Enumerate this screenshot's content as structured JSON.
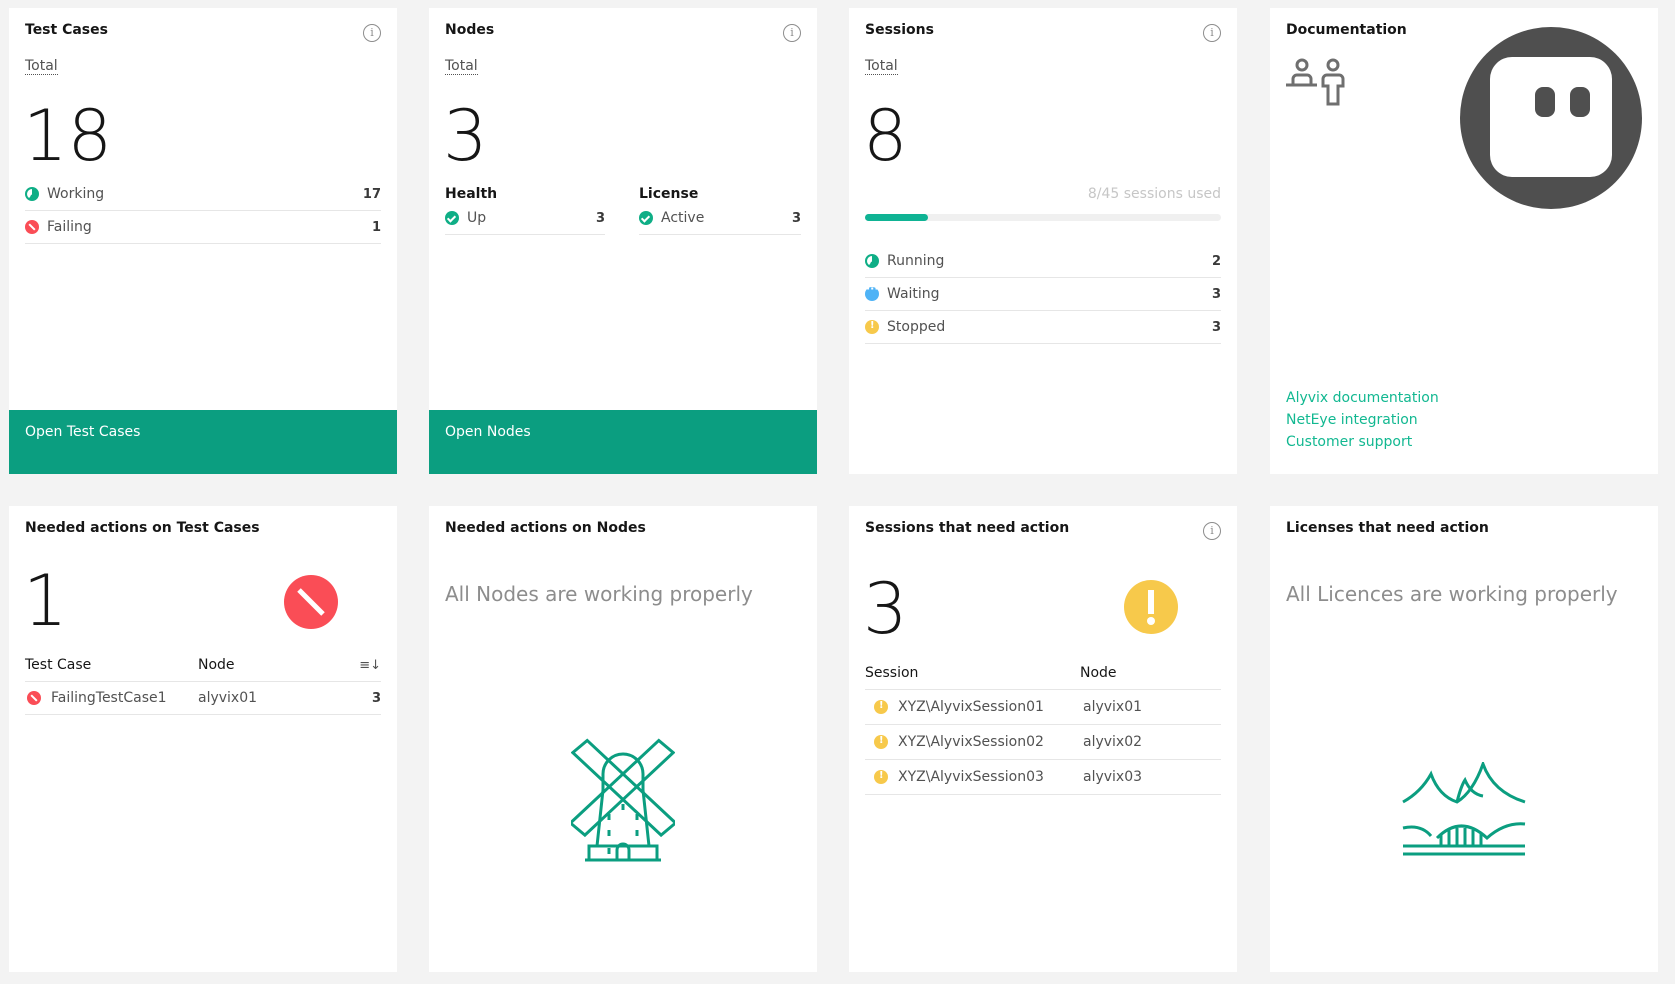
{
  "test_cases": {
    "title": "Test Cases",
    "total_label": "Total",
    "total": "18",
    "rows": [
      {
        "label": "Working",
        "value": "17",
        "icon": "working-icon"
      },
      {
        "label": "Failing",
        "value": "1",
        "icon": "failing-icon"
      }
    ],
    "button": "Open Test Cases"
  },
  "nodes": {
    "title": "Nodes",
    "total_label": "Total",
    "total": "3",
    "health": {
      "title": "Health",
      "label": "Up",
      "value": "3"
    },
    "license": {
      "title": "License",
      "label": "Active",
      "value": "3"
    },
    "button": "Open Nodes"
  },
  "sessions": {
    "title": "Sessions",
    "total_label": "Total",
    "total": "8",
    "usage_text": "8/45 sessions used",
    "usage_fraction": 0.178,
    "rows": [
      {
        "label": "Running",
        "value": "2"
      },
      {
        "label": "Waiting",
        "value": "3"
      },
      {
        "label": "Stopped",
        "value": "3"
      }
    ]
  },
  "documentation": {
    "title": "Documentation",
    "links": [
      "Alyvix documentation",
      "NetEye integration",
      "Customer support"
    ]
  },
  "needed_tc": {
    "title": "Needed actions on Test Cases",
    "count": "1",
    "headers": [
      "Test Case",
      "Node"
    ],
    "rows": [
      {
        "name": "FailingTestCase1",
        "node": "alyvix01",
        "value": "3"
      }
    ]
  },
  "needed_nodes": {
    "title": "Needed actions on Nodes",
    "message": "All Nodes are working properly"
  },
  "sessions_action": {
    "title": "Sessions that need action",
    "count": "3",
    "headers": [
      "Session",
      "Node"
    ],
    "rows": [
      {
        "session": "XYZ\\AlyvixSession01",
        "node": "alyvix01"
      },
      {
        "session": "XYZ\\AlyvixSession02",
        "node": "alyvix02"
      },
      {
        "session": "XYZ\\AlyvixSession03",
        "node": "alyvix03"
      }
    ]
  },
  "licenses": {
    "title": "Licenses that need action",
    "message": "All Licences are working properly"
  },
  "colors": {
    "accent": "#0b9e80",
    "fail": "#fa4d56",
    "warn": "#f7c94b",
    "wait": "#4fb3f6"
  }
}
